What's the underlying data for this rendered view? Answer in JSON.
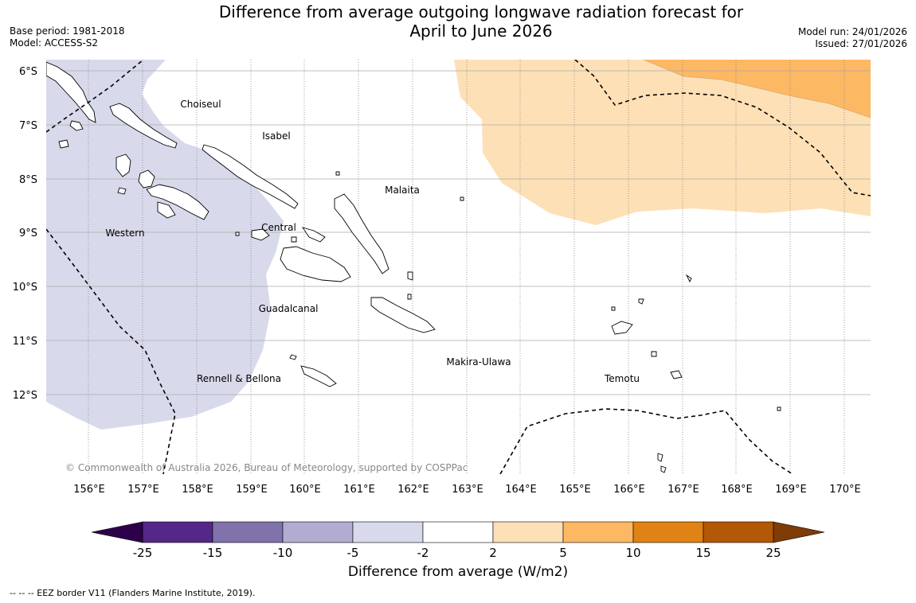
{
  "title_line1": "Difference from average outgoing longwave radiation forecast for",
  "title_line2": "April to June 2026",
  "base_period": "Base period: 1981-2018",
  "model": "Model: ACCESS-S2",
  "model_run": "Model run: 24/01/2026",
  "issued": "Issued: 27/01/2026",
  "copyright": "© Commonwealth of Australia 2026, Bureau of Meteorology, supported by COSPPac",
  "lat_labels": [
    "6°S",
    "7°S",
    "8°S",
    "9°S",
    "10°S",
    "11°S",
    "12°S"
  ],
  "lon_labels": [
    "156°E",
    "157°E",
    "158°E",
    "159°E",
    "160°E",
    "161°E",
    "162°E",
    "163°E",
    "164°E",
    "165°E",
    "166°E",
    "167°E",
    "168°E",
    "169°E",
    "170°E"
  ],
  "regions": {
    "choiseul": "Choiseul",
    "isabel": "Isabel",
    "malaita": "Malaita",
    "western": "Western",
    "central": "Central",
    "guadalcanal": "Guadalcanal",
    "makira": "Makira-Ulawa",
    "rennell": "Rennell & Bellona",
    "temotu": "Temotu"
  },
  "colorbar": {
    "ticks": [
      "-25",
      "-15",
      "-10",
      "-5",
      "-2",
      "2",
      "5",
      "10",
      "15",
      "25"
    ],
    "colors": [
      "#542788",
      "#8073ac",
      "#b2abd2",
      "#d8daeb",
      "#ffffff",
      "#fee0b6",
      "#fdb863",
      "#e08214",
      "#b35806"
    ],
    "under_color": "#2d004b",
    "over_color": "#7f3b08",
    "label": "Difference from average (W/m2)"
  },
  "footnote": "--  --  -- EEZ border V11 (Flanders Marine Institute, 2019)."
}
